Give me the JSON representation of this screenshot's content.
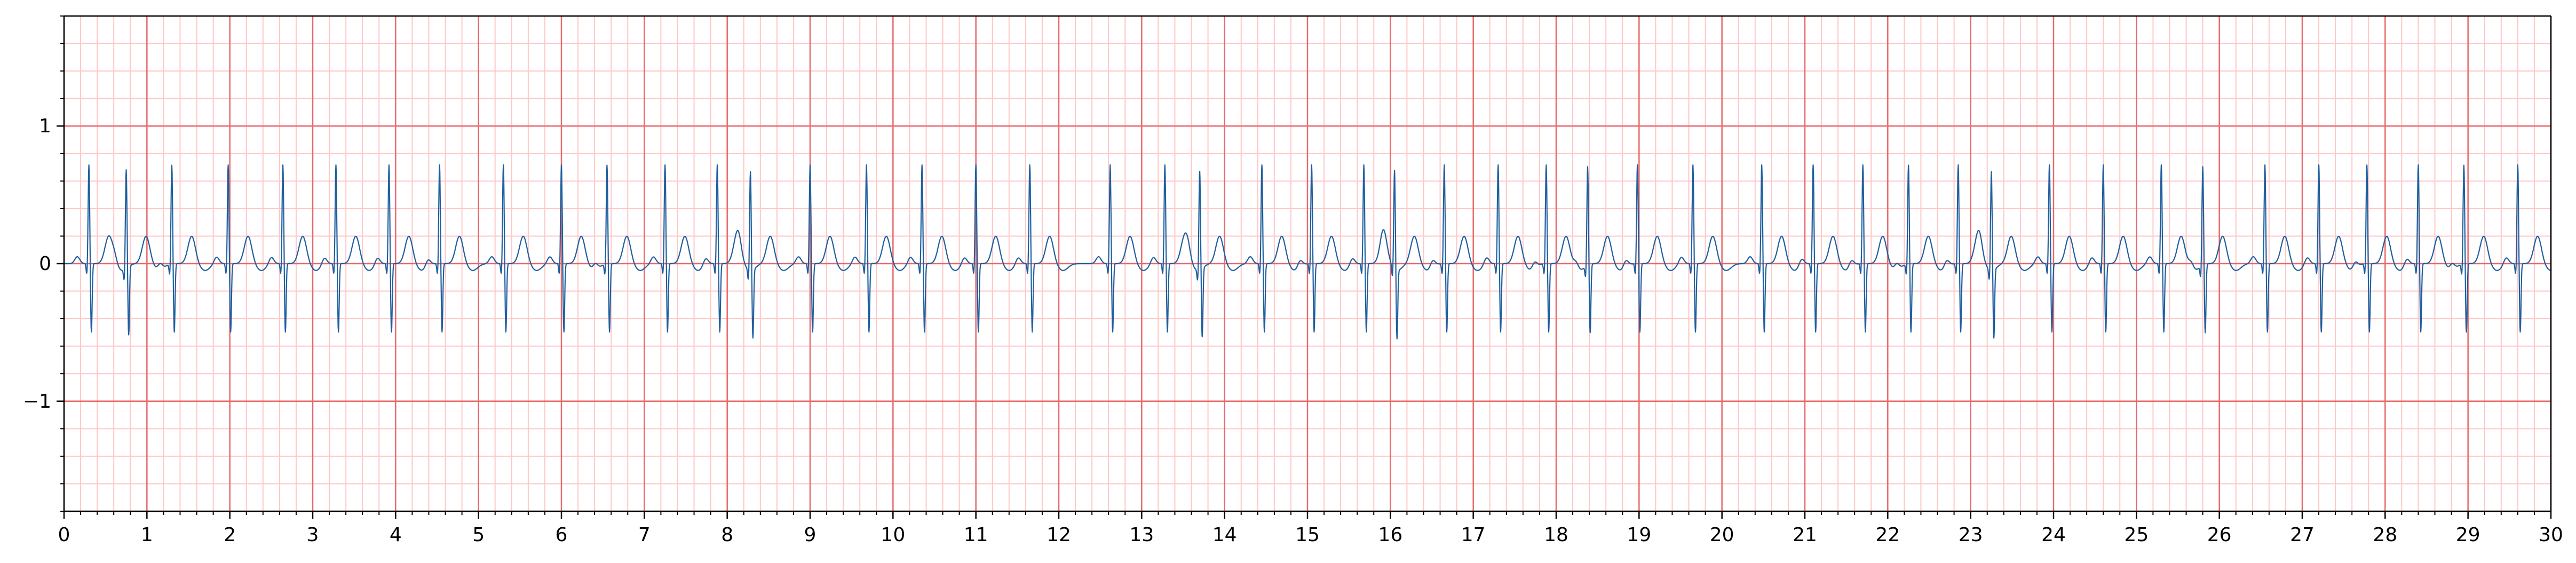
{
  "chart_data": {
    "type": "line",
    "title": "",
    "xlabel": "",
    "ylabel": "",
    "xlim": [
      0,
      30
    ],
    "ylim": [
      -1.8,
      1.8
    ],
    "x_ticks": [
      "0",
      "1",
      "2",
      "3",
      "4",
      "5",
      "6",
      "7",
      "8",
      "9",
      "10",
      "11",
      "12",
      "13",
      "14",
      "15",
      "16",
      "17",
      "18",
      "19",
      "20",
      "21",
      "22",
      "23",
      "24",
      "25",
      "26",
      "27",
      "28",
      "29",
      "30"
    ],
    "y_ticks": [
      {
        "value": 1,
        "label": "1"
      },
      {
        "value": 0,
        "label": "0"
      },
      {
        "value": -1,
        "label": "−1"
      }
    ],
    "grid": {
      "major_x_step": 1,
      "minor_x_step": 0.2,
      "major_y_step": 1,
      "minor_y_step": 0.2,
      "major_color": "#e8696b",
      "minor_color": "#ffc6c6"
    },
    "series": [
      {
        "color": "#1f5f9f",
        "beat_times": [
          0.3,
          0.75,
          1.3,
          1.98,
          2.64,
          3.28,
          3.92,
          4.53,
          5.3,
          6.0,
          6.55,
          7.25,
          7.88,
          8.28,
          9.0,
          9.68,
          10.35,
          11.0,
          11.65,
          12.62,
          13.28,
          13.7,
          14.45,
          15.05,
          15.68,
          16.05,
          16.65,
          17.3,
          17.88,
          18.38,
          18.98,
          19.65,
          20.48,
          21.1,
          21.7,
          22.25,
          22.85,
          23.25,
          23.95,
          24.6,
          25.3,
          25.8,
          26.55,
          27.2,
          27.78,
          28.4,
          28.95,
          29.6
        ],
        "amplitude_r": 0.72,
        "amplitude_s": -0.5,
        "amplitude_t": 0.2,
        "baseline": 0.0
      }
    ]
  }
}
